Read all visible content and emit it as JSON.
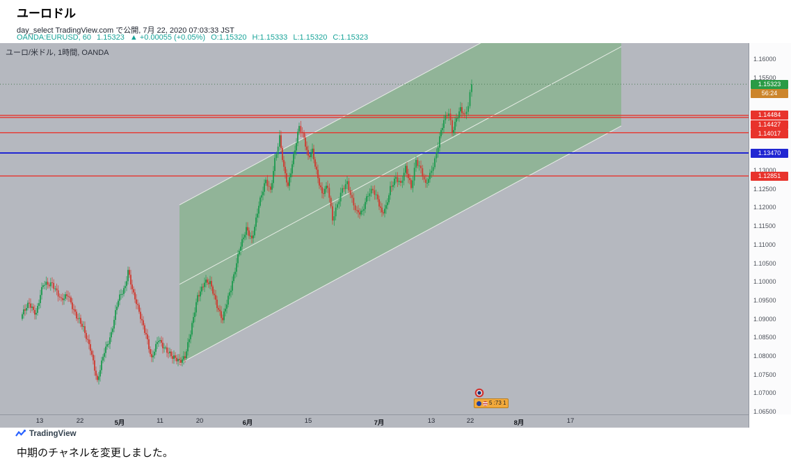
{
  "header": {
    "title": "ユーロドル",
    "byline": "day_select TradingView.com で公開, 7月 22, 2020 07:03:33 JST",
    "symbol_line": {
      "symbol": "OANDA:EURUSD, 60",
      "last": "1.15323",
      "change": "▲ +0.00055 (+0.05%)",
      "ohlc": [
        {
          "label": "O:",
          "value": "1.15320"
        },
        {
          "label": "H:",
          "value": "1.15333"
        },
        {
          "label": "L:",
          "value": "1.15320"
        },
        {
          "label": "C:",
          "value": "1.15323"
        }
      ]
    }
  },
  "chart": {
    "pane_legend": "ユーロ/米ドル, 1時間, OANDA",
    "event_badge": "5 :73 1"
  },
  "footer": {
    "brand": "TradingView",
    "caption": "中期のチャネルを変更しました。"
  },
  "colors": {
    "pane_background": "#b5b8bf",
    "accent_teal": "#17a398",
    "red_line": "#e8332c",
    "blue_line": "#2026d2",
    "last_price_green": "#2a9b45",
    "countdown_orange": "#cc852c"
  },
  "chart_data": {
    "type": "candlestick",
    "title": "ユーロ/米ドル, 1時間, OANDA",
    "symbol": "OANDA:EURUSD",
    "interval": "60",
    "ylim": [
      1.065,
      1.16
    ],
    "y_tick_step": 0.005,
    "grid": false,
    "legend_position": "top-left",
    "x_axis_ticks": [
      {
        "label": "13",
        "x": 57,
        "month": false
      },
      {
        "label": "22",
        "x": 115,
        "month": false
      },
      {
        "label": "5月",
        "x": 172,
        "month": true
      },
      {
        "label": "11",
        "x": 230,
        "month": false
      },
      {
        "label": "20",
        "x": 287,
        "month": false
      },
      {
        "label": "6月",
        "x": 356,
        "month": true
      },
      {
        "label": "15",
        "x": 443,
        "month": false
      },
      {
        "label": "7月",
        "x": 545,
        "month": true
      },
      {
        "label": "13",
        "x": 620,
        "month": false
      },
      {
        "label": "22",
        "x": 676,
        "month": false
      },
      {
        "label": "8月",
        "x": 746,
        "month": true
      },
      {
        "label": "17",
        "x": 820,
        "month": false
      }
    ],
    "price_path": [
      [
        30,
        1.09
      ],
      [
        42,
        1.0945
      ],
      [
        52,
        1.0915
      ],
      [
        62,
        1.099
      ],
      [
        75,
        1.1
      ],
      [
        88,
        1.0945
      ],
      [
        98,
        1.0968
      ],
      [
        110,
        1.0905
      ],
      [
        120,
        1.0872
      ],
      [
        130,
        1.0825
      ],
      [
        140,
        1.0725
      ],
      [
        150,
        1.0815
      ],
      [
        160,
        1.0862
      ],
      [
        170,
        1.0948
      ],
      [
        180,
        1.099
      ],
      [
        184,
        1.1035
      ],
      [
        192,
        1.0962
      ],
      [
        202,
        1.0905
      ],
      [
        210,
        1.0862
      ],
      [
        218,
        1.0788
      ],
      [
        228,
        1.0845
      ],
      [
        238,
        1.0822
      ],
      [
        248,
        1.0792
      ],
      [
        258,
        1.0788
      ],
      [
        266,
        1.0802
      ],
      [
        274,
        1.0858
      ],
      [
        284,
        1.0962
      ],
      [
        294,
        1.1002
      ],
      [
        302,
        1.0992
      ],
      [
        312,
        1.0938
      ],
      [
        320,
        1.0902
      ],
      [
        332,
        1.0978
      ],
      [
        344,
        1.1092
      ],
      [
        354,
        1.1138
      ],
      [
        362,
        1.1112
      ],
      [
        372,
        1.1212
      ],
      [
        382,
        1.1268
      ],
      [
        389,
        1.1242
      ],
      [
        395,
        1.1332
      ],
      [
        402,
        1.1392
      ],
      [
        408,
        1.1302
      ],
      [
        414,
        1.1252
      ],
      [
        422,
        1.1342
      ],
      [
        430,
        1.1422
      ],
      [
        437,
        1.1382
      ],
      [
        443,
        1.1332
      ],
      [
        449,
        1.1356
      ],
      [
        457,
        1.1282
      ],
      [
        463,
        1.1232
      ],
      [
        471,
        1.1256
      ],
      [
        478,
        1.1172
      ],
      [
        485,
        1.1212
      ],
      [
        492,
        1.1246
      ],
      [
        499,
        1.1262
      ],
      [
        506,
        1.1222
      ],
      [
        513,
        1.1192
      ],
      [
        521,
        1.1186
      ],
      [
        529,
        1.1232
      ],
      [
        536,
        1.1252
      ],
      [
        543,
        1.1226
      ],
      [
        549,
        1.1182
      ],
      [
        555,
        1.1196
      ],
      [
        561,
        1.1252
      ],
      [
        569,
        1.1286
      ],
      [
        576,
        1.1262
      ],
      [
        583,
        1.1302
      ],
      [
        591,
        1.1256
      ],
      [
        598,
        1.1332
      ],
      [
        605,
        1.1302
      ],
      [
        612,
        1.1256
      ],
      [
        618,
        1.1286
      ],
      [
        625,
        1.1332
      ],
      [
        632,
        1.1392
      ],
      [
        638,
        1.1432
      ],
      [
        645,
        1.1452
      ],
      [
        650,
        1.1402
      ],
      [
        656,
        1.1444
      ],
      [
        662,
        1.1468
      ],
      [
        668,
        1.1442
      ],
      [
        673,
        1.1472
      ],
      [
        678,
        1.15323
      ]
    ],
    "channel": {
      "x_range": [
        258,
        893
      ],
      "lower": [
        1.0779,
        1.142
      ],
      "upper": [
        1.1207,
        1.1847
      ],
      "fill": "rgba(76,172,80,0.35)",
      "line_color": "#f0f3ee"
    },
    "horizontal_lines": [
      {
        "price": 1.14484,
        "label": "1.14484",
        "color": "#e8332c",
        "width": 1.4
      },
      {
        "price": 1.14427,
        "label": "1.14427",
        "color": "#e8332c",
        "width": 1.4
      },
      {
        "price": 1.14017,
        "label": "1.14017",
        "color": "#e8332c",
        "width": 1.4
      },
      {
        "price": 1.1347,
        "label": "1.13470",
        "color": "#2026d2",
        "width": 2
      },
      {
        "price": 1.12851,
        "label": "1.12851",
        "color": "#e8332c",
        "width": 1.4
      }
    ],
    "last_price": {
      "value": 1.15323,
      "label": "1.15323",
      "color": "#2a9b45",
      "line_color": "#4a7a55",
      "countdown": "56:24",
      "countdown_color": "#cc852c"
    },
    "candle_colors": {
      "up": "#1c9a4e",
      "down": "#cf3a30"
    }
  }
}
